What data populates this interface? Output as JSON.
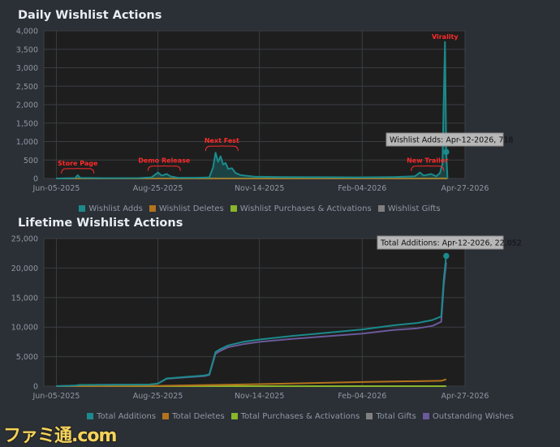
{
  "charts": [
    {
      "id": "daily",
      "type": "area",
      "title": "Daily Wishlist Actions",
      "y_ticks": [
        "0",
        "500",
        "1,000",
        "1,500",
        "2,000",
        "2,500",
        "3,000",
        "3,500",
        "4,000"
      ],
      "y_tick_values": [
        0,
        500,
        1000,
        1500,
        2000,
        2500,
        3000,
        3500,
        4000
      ],
      "ylim": [
        0,
        4000
      ],
      "x_tick_labels": [
        "Jun-05-2025",
        "Aug-25-2025",
        "Nov-14-2025",
        "Feb-04-2026",
        "Apr-27-2026"
      ],
      "x_tick_dates": [
        "2025-06-05",
        "2025-08-25",
        "2025-11-14",
        "2026-02-04",
        "2026-04-27"
      ],
      "x_range": [
        "2025-05-26",
        "2026-04-27"
      ],
      "grid": true,
      "legend_position": "bottom",
      "series": [
        {
          "name": "Wishlist Adds",
          "color": "#1b8a8c",
          "points": [
            [
              "2025-06-05",
              0
            ],
            [
              "2025-06-20",
              10
            ],
            [
              "2025-06-22",
              90
            ],
            [
              "2025-06-24",
              15
            ],
            [
              "2025-07-15",
              8
            ],
            [
              "2025-08-10",
              10
            ],
            [
              "2025-08-20",
              30
            ],
            [
              "2025-08-25",
              160
            ],
            [
              "2025-08-28",
              80
            ],
            [
              "2025-09-01",
              120
            ],
            [
              "2025-09-04",
              60
            ],
            [
              "2025-09-10",
              20
            ],
            [
              "2025-09-25",
              20
            ],
            [
              "2025-10-05",
              30
            ],
            [
              "2025-10-08",
              300
            ],
            [
              "2025-10-10",
              700
            ],
            [
              "2025-10-12",
              450
            ],
            [
              "2025-10-14",
              600
            ],
            [
              "2025-10-16",
              380
            ],
            [
              "2025-10-18",
              420
            ],
            [
              "2025-10-20",
              260
            ],
            [
              "2025-10-23",
              280
            ],
            [
              "2025-10-26",
              150
            ],
            [
              "2025-10-30",
              90
            ],
            [
              "2025-11-10",
              50
            ],
            [
              "2025-12-01",
              40
            ],
            [
              "2026-01-01",
              35
            ],
            [
              "2026-02-01",
              30
            ],
            [
              "2026-02-20",
              35
            ],
            [
              "2026-03-01",
              40
            ],
            [
              "2026-03-18",
              60
            ],
            [
              "2026-03-22",
              160
            ],
            [
              "2026-03-25",
              80
            ],
            [
              "2026-03-31",
              120
            ],
            [
              "2026-04-04",
              60
            ],
            [
              "2026-04-07",
              150
            ],
            [
              "2026-04-09",
              400
            ],
            [
              "2026-04-10",
              2100
            ],
            [
              "2026-04-11",
              3700
            ],
            [
              "2026-04-12",
              718
            ],
            [
              "2026-04-13",
              0
            ]
          ]
        },
        {
          "name": "Wishlist Deletes",
          "color": "#b4731c",
          "points": [
            [
              "2025-06-05",
              0
            ],
            [
              "2026-04-13",
              5
            ]
          ]
        },
        {
          "name": "Wishlist Purchases & Activations",
          "color": "#89b62a",
          "points": [
            [
              "2025-06-05",
              0
            ],
            [
              "2026-04-13",
              0
            ]
          ]
        },
        {
          "name": "Wishlist Gifts",
          "color": "#808080",
          "points": [
            [
              "2025-06-05",
              0
            ],
            [
              "2026-04-13",
              0
            ]
          ]
        }
      ],
      "annotations": [
        {
          "text": "Store Page",
          "date": "2025-06-22",
          "value": 90
        },
        {
          "text": "Demo Release",
          "date": "2025-08-30",
          "value": 160
        },
        {
          "text": "Next Fest",
          "date": "2025-10-15",
          "value": 700
        },
        {
          "text": "New Trailer",
          "date": "2026-03-28",
          "value": 160
        },
        {
          "text": "Virality",
          "date": "2026-04-11",
          "value": 3700
        }
      ],
      "tooltip": {
        "text": "Wishlist Adds: Apr-12-2026, 718",
        "date": "2026-04-12",
        "value": 718
      }
    },
    {
      "id": "lifetime",
      "type": "line",
      "title": "Lifetime Wishlist Actions",
      "y_ticks": [
        "0",
        "5,000",
        "10,000",
        "15,000",
        "20,000",
        "25,000"
      ],
      "y_tick_values": [
        0,
        5000,
        10000,
        15000,
        20000,
        25000
      ],
      "ylim": [
        0,
        25000
      ],
      "x_tick_labels": [
        "Jun-05-2025",
        "Aug-25-2025",
        "Nov-14-2025",
        "Feb-04-2026",
        "Apr-27-2026"
      ],
      "x_tick_dates": [
        "2025-06-05",
        "2025-08-25",
        "2025-11-14",
        "2026-02-04",
        "2026-04-27"
      ],
      "x_range": [
        "2025-05-26",
        "2026-04-27"
      ],
      "grid": true,
      "legend_position": "bottom",
      "series": [
        {
          "name": "Total Additions",
          "color": "#1b8a8c",
          "points": [
            [
              "2025-06-05",
              0
            ],
            [
              "2025-06-20",
              100
            ],
            [
              "2025-06-24",
              200
            ],
            [
              "2025-08-18",
              280
            ],
            [
              "2025-08-25",
              450
            ],
            [
              "2025-09-01",
              1300
            ],
            [
              "2025-09-15",
              1550
            ],
            [
              "2025-10-01",
              1800
            ],
            [
              "2025-10-05",
              2000
            ],
            [
              "2025-10-10",
              5800
            ],
            [
              "2025-10-14",
              6300
            ],
            [
              "2025-10-20",
              6900
            ],
            [
              "2025-11-01",
              7500
            ],
            [
              "2025-11-14",
              7900
            ],
            [
              "2025-12-10",
              8500
            ],
            [
              "2026-01-10",
              9100
            ],
            [
              "2026-02-04",
              9600
            ],
            [
              "2026-03-01",
              10300
            ],
            [
              "2026-03-20",
              10700
            ],
            [
              "2026-04-01",
              11200
            ],
            [
              "2026-04-08",
              11800
            ],
            [
              "2026-04-10",
              18000
            ],
            [
              "2026-04-12",
              22052
            ]
          ]
        },
        {
          "name": "Total Deletes",
          "color": "#b4731c",
          "points": [
            [
              "2025-06-05",
              0
            ],
            [
              "2025-08-25",
              50
            ],
            [
              "2025-10-10",
              200
            ],
            [
              "2025-11-14",
              350
            ],
            [
              "2026-02-04",
              700
            ],
            [
              "2026-04-08",
              900
            ],
            [
              "2026-04-12",
              1150
            ]
          ]
        },
        {
          "name": "Total Purchases & Activations",
          "color": "#89b62a",
          "points": [
            [
              "2025-06-05",
              0
            ],
            [
              "2026-04-12",
              0
            ]
          ]
        },
        {
          "name": "Total Gifts",
          "color": "#808080",
          "points": [
            [
              "2025-06-05",
              0
            ],
            [
              "2026-04-12",
              0
            ]
          ]
        },
        {
          "name": "Outstanding Wishes",
          "color": "#6a5a9a",
          "points": [
            [
              "2025-06-05",
              0
            ],
            [
              "2025-06-20",
              100
            ],
            [
              "2025-06-24",
              200
            ],
            [
              "2025-08-18",
              260
            ],
            [
              "2025-08-25",
              420
            ],
            [
              "2025-09-01",
              1250
            ],
            [
              "2025-09-15",
              1480
            ],
            [
              "2025-10-01",
              1700
            ],
            [
              "2025-10-05",
              1900
            ],
            [
              "2025-10-10",
              5500
            ],
            [
              "2025-10-14",
              6000
            ],
            [
              "2025-10-20",
              6600
            ],
            [
              "2025-11-01",
              7100
            ],
            [
              "2025-11-14",
              7500
            ],
            [
              "2025-12-10",
              8000
            ],
            [
              "2026-01-10",
              8500
            ],
            [
              "2026-02-04",
              8900
            ],
            [
              "2026-03-01",
              9500
            ],
            [
              "2026-03-20",
              9800
            ],
            [
              "2026-04-01",
              10200
            ],
            [
              "2026-04-08",
              10900
            ],
            [
              "2026-04-10",
              17000
            ],
            [
              "2026-04-12",
              20900
            ]
          ]
        }
      ],
      "tooltip": {
        "text": "Total Additions: Apr-12-2026, 22,052",
        "date": "2026-04-12",
        "value": 22052
      }
    }
  ],
  "watermark": "ファミ通.com"
}
